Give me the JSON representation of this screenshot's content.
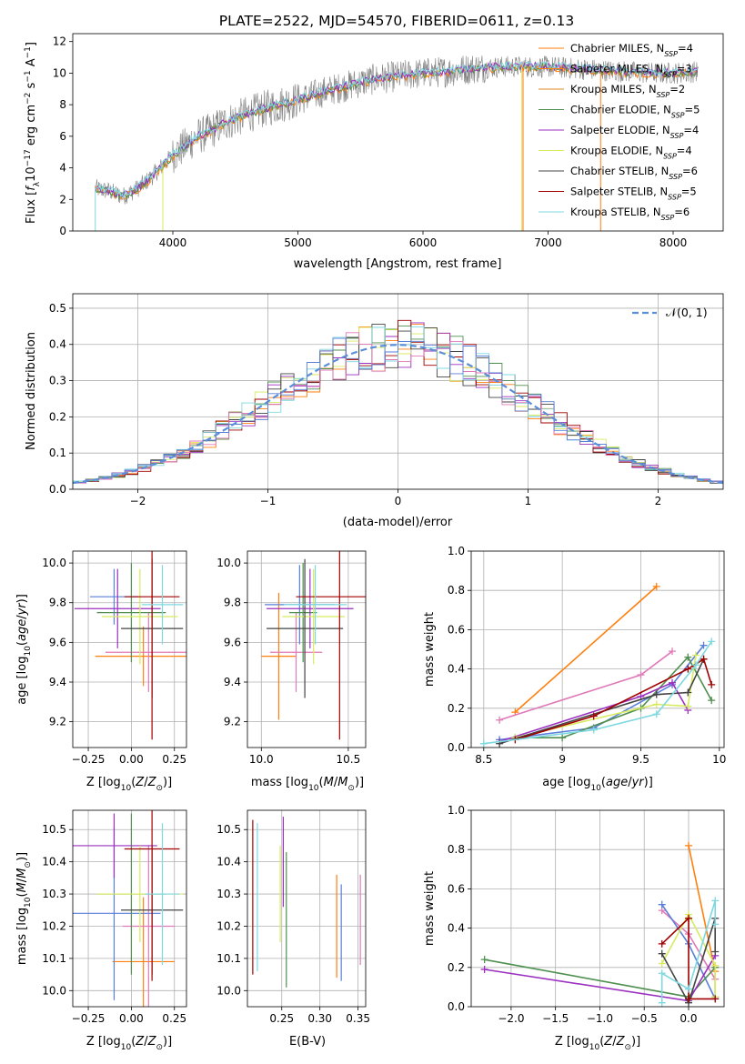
{
  "title": "PLATE=2522, MJD=54570, FIBERID=0611, z=0.13",
  "colors": {
    "Chabrier MILES": "#ff7f0e",
    "Salpeter MILES": "#ff7f0e",
    "Kroupa MILES": "#e08a20",
    "Chabrier ELODIE": "#4f8f4f",
    "Salpeter ELODIE": "#9b30c0",
    "Kroupa ELODIE": "#d8ea60",
    "Chabrier STELIB": "#444444",
    "Salpeter STELIB": "#a00000",
    "Kroupa STELIB": "#7dd8e0",
    "blue": "#5a7fd8",
    "pink": "#e07ab8",
    "gauss": "#5a8fd8",
    "data": "#7f7f7f"
  },
  "chart_data": [
    {
      "id": "spectrum",
      "type": "line",
      "title": "PLATE=2522, MJD=54570, FIBERID=0611, z=0.13",
      "xlabel": "wavelength [Angstrom, rest frame]",
      "ylabel": "Flux [fλ10−17 erg cm−2 s−1 A−1]",
      "xlim": [
        3200,
        8400
      ],
      "ylim": [
        0,
        12.5
      ],
      "xticks": [
        4000,
        5000,
        6000,
        7000,
        8000
      ],
      "yticks": [
        0,
        2,
        4,
        6,
        8,
        10,
        12
      ],
      "grid": false,
      "legend_position": "top-right",
      "legend": [
        {
          "label": "Chabrier MILES, N",
          "sub": "SSP",
          "tail": "=4",
          "color": "#ff7f0e"
        },
        {
          "label": "Salpeter MILES, N",
          "sub": "SSP",
          "tail": "=3",
          "color": "#ff7f0e"
        },
        {
          "label": "Kroupa MILES, N",
          "sub": "SSP",
          "tail": "=2",
          "color": "#e08a20"
        },
        {
          "label": "Chabrier ELODIE, N",
          "sub": "SSP",
          "tail": "=5",
          "color": "#4f8f4f"
        },
        {
          "label": "Salpeter ELODIE, N",
          "sub": "SSP",
          "tail": "=4",
          "color": "#9b30c0"
        },
        {
          "label": "Kroupa ELODIE, N",
          "sub": "SSP",
          "tail": "=4",
          "color": "#d8ea60"
        },
        {
          "label": "Chabrier STELIB, N",
          "sub": "SSP",
          "tail": "=6",
          "color": "#444444"
        },
        {
          "label": "Salpeter STELIB, N",
          "sub": "SSP",
          "tail": "=5",
          "color": "#a00000"
        },
        {
          "label": "Kroupa STELIB, N",
          "sub": "SSP",
          "tail": "=6",
          "color": "#7dd8e0"
        }
      ],
      "continuum": {
        "x": [
          3380,
          3500,
          3600,
          3700,
          3800,
          3900,
          4000,
          4100,
          4200,
          4300,
          4400,
          4500,
          4600,
          4800,
          5000,
          5200,
          5400,
          5600,
          5800,
          6000,
          6200,
          6400,
          6600,
          6800,
          7000,
          7200,
          7400,
          7600,
          7800,
          8000,
          8200
        ],
        "y": [
          2.7,
          2.5,
          2.2,
          2.6,
          3.2,
          4.0,
          4.8,
          5.4,
          6.0,
          6.3,
          6.8,
          7.1,
          7.4,
          7.9,
          8.3,
          8.8,
          9.2,
          9.6,
          9.8,
          10.0,
          10.1,
          10.3,
          10.4,
          10.4,
          10.4,
          10.3,
          10.2,
          10.1,
          10.0,
          10.0,
          10.1
        ]
      },
      "drops": [
        {
          "x": 3920,
          "color": "#d8ea60"
        },
        {
          "x": 6790,
          "color": "#d8ea60"
        },
        {
          "x": 6800,
          "color": "#ff7f0e"
        },
        {
          "x": 7420,
          "color": "#ff7f0e"
        },
        {
          "x": 3380,
          "color": "#7dd8e0"
        }
      ]
    },
    {
      "id": "residuals",
      "type": "bar",
      "xlabel": "(data-model)/error",
      "ylabel": "Normed distribution",
      "xlim": [
        -2.5,
        2.5
      ],
      "ylim": [
        0,
        0.54
      ],
      "xticks": [
        -2,
        -1,
        0,
        1,
        2
      ],
      "yticks": [
        0.0,
        0.1,
        0.2,
        0.3,
        0.4,
        0.5
      ],
      "grid": true,
      "legend_position": "top-right",
      "legend": [
        {
          "label": "𝒩(0, 1)",
          "style": "dashed",
          "color": "#5a8fd8"
        }
      ],
      "bin_width": 0.1
    },
    {
      "id": "age_vs_Z",
      "type": "scatter",
      "xlabel": "Z [log10(Z/Z⊙)]",
      "ylabel": "age  [log10(age/yr)]",
      "xlim": [
        -0.34,
        0.32
      ],
      "ylim": [
        9.07,
        10.06
      ],
      "xticks": [
        -0.25,
        0.0,
        0.25
      ],
      "xticklabels": [
        "−0.25",
        "0.00",
        "0.25"
      ],
      "yticks": [
        9.2,
        9.4,
        9.6,
        9.8,
        10.0
      ],
      "grid": true,
      "points": [
        {
          "x": 0.07,
          "y": 9.53,
          "xerr": 0.28,
          "yerr": 0.15,
          "color": "#ff7f0e"
        },
        {
          "x": 0.1,
          "y": 9.55,
          "xerr": 0.25,
          "yerr": 0.2,
          "color": "#e07ab8"
        },
        {
          "x": -0.1,
          "y": 9.83,
          "xerr": 0.14,
          "yerr": 0.14,
          "color": "#5a7fd8"
        },
        {
          "x": 0.0,
          "y": 9.75,
          "xerr": 0.2,
          "yerr": 0.25,
          "color": "#4f8f4f"
        },
        {
          "x": -0.08,
          "y": 9.77,
          "xerr": 0.25,
          "yerr": 0.2,
          "color": "#9b30c0"
        },
        {
          "x": 0.05,
          "y": 9.73,
          "xerr": 0.22,
          "yerr": 0.24,
          "color": "#d8ea60"
        },
        {
          "x": 0.12,
          "y": 9.67,
          "xerr": 0.18,
          "yerr": 0.35,
          "color": "#444444"
        },
        {
          "x": 0.12,
          "y": 9.83,
          "xerr": 0.16,
          "yerr": 0.72,
          "color": "#a00000"
        },
        {
          "x": 0.18,
          "y": 9.79,
          "xerr": 0.12,
          "yerr": 0.2,
          "color": "#7dd8e0"
        }
      ]
    },
    {
      "id": "age_vs_mass",
      "type": "scatter",
      "xlabel": "mass [log10(M/M⊙)]",
      "xlim": [
        9.92,
        10.6
      ],
      "ylim": [
        9.07,
        10.06
      ],
      "xticks": [
        10.0,
        10.5
      ],
      "xticklabels": [
        "10.0",
        "10.5"
      ],
      "yticks": [
        9.2,
        9.4,
        9.6,
        9.8,
        10.0
      ],
      "grid": true,
      "points": [
        {
          "x": 10.1,
          "y": 9.53,
          "xerr": 0.1,
          "yerr": 0.32,
          "color": "#ff7f0e"
        },
        {
          "x": 10.2,
          "y": 9.55,
          "xerr": 0.15,
          "yerr": 0.2,
          "color": "#e07ab8"
        },
        {
          "x": 10.22,
          "y": 9.79,
          "xerr": 0.2,
          "yerr": 0.2,
          "color": "#5a7fd8"
        },
        {
          "x": 10.24,
          "y": 9.75,
          "xerr": 0.08,
          "yerr": 0.25,
          "color": "#4f8f4f"
        },
        {
          "x": 10.28,
          "y": 9.77,
          "xerr": 0.25,
          "yerr": 0.2,
          "color": "#9b30c0"
        },
        {
          "x": 10.3,
          "y": 9.73,
          "xerr": 0.18,
          "yerr": 0.24,
          "color": "#d8ea60"
        },
        {
          "x": 10.25,
          "y": 9.67,
          "xerr": 0.22,
          "yerr": 0.35,
          "color": "#444444"
        },
        {
          "x": 10.45,
          "y": 9.83,
          "xerr": 0.25,
          "yerr": 0.72,
          "color": "#a00000"
        },
        {
          "x": 10.31,
          "y": 9.79,
          "xerr": 0.18,
          "yerr": 0.2,
          "color": "#7dd8e0"
        }
      ]
    },
    {
      "id": "weight_vs_age",
      "type": "line",
      "xlabel": "age  [log10(age/yr)]",
      "ylabel": "mass weight",
      "xlim": [
        8.42,
        10.03
      ],
      "ylim": [
        0,
        1.0
      ],
      "xticks": [
        8.5,
        9.0,
        9.5,
        10.0
      ],
      "yticks": [
        0.0,
        0.2,
        0.4,
        0.6,
        0.8,
        1.0
      ],
      "grid": true,
      "series": [
        {
          "color": "#ff7f0e",
          "x": [
            8.7,
            9.6
          ],
          "y": [
            0.18,
            0.82
          ]
        },
        {
          "color": "#e07ab8",
          "x": [
            8.6,
            9.5,
            9.7
          ],
          "y": [
            0.14,
            0.37,
            0.49
          ]
        },
        {
          "color": "#5a7fd8",
          "x": [
            8.6,
            9.2,
            9.7,
            9.9
          ],
          "y": [
            0.04,
            0.1,
            0.32,
            0.52
          ]
        },
        {
          "color": "#4f8f4f",
          "x": [
            8.7,
            9.0,
            9.5,
            9.8,
            9.95
          ],
          "y": [
            0.05,
            0.05,
            0.2,
            0.46,
            0.24
          ]
        },
        {
          "color": "#9b30c0",
          "x": [
            8.6,
            9.5,
            9.7,
            9.8
          ],
          "y": [
            0.03,
            0.26,
            0.33,
            0.19
          ]
        },
        {
          "color": "#d8ea60",
          "x": [
            8.7,
            9.6,
            9.8,
            9.85
          ],
          "y": [
            0.05,
            0.22,
            0.21,
            0.47
          ]
        },
        {
          "color": "#444444",
          "x": [
            8.6,
            9.6,
            9.8,
            9.9
          ],
          "y": [
            0.02,
            0.27,
            0.28,
            0.45
          ]
        },
        {
          "color": "#a00000",
          "x": [
            8.7,
            9.2,
            9.8,
            9.9,
            9.95
          ],
          "y": [
            0.04,
            0.16,
            0.4,
            0.45,
            0.32
          ]
        },
        {
          "color": "#7dd8e0",
          "x": [
            8.5,
            9.2,
            9.6,
            9.85,
            9.95
          ],
          "y": [
            0.02,
            0.09,
            0.17,
            0.42,
            0.54
          ]
        }
      ]
    },
    {
      "id": "mass_vs_Z",
      "type": "scatter",
      "xlabel": "Z [log10(Z/Z⊙)]",
      "ylabel": "mass [log10(M/M⊙)]",
      "xlim": [
        -0.34,
        0.32
      ],
      "ylim": [
        9.95,
        10.56
      ],
      "xticks": [
        -0.25,
        0.0,
        0.25
      ],
      "xticklabels": [
        "−0.25",
        "0.00",
        "0.25"
      ],
      "yticks": [
        10.0,
        10.1,
        10.2,
        10.3,
        10.4,
        10.5
      ],
      "grid": true,
      "points": [
        {
          "x": 0.07,
          "y": 10.09,
          "xerr": 0.18,
          "yerr": 0.2,
          "color": "#ff7f0e"
        },
        {
          "x": 0.1,
          "y": 10.2,
          "xerr": 0.15,
          "yerr": 0.25,
          "color": "#e07ab8"
        },
        {
          "x": -0.1,
          "y": 10.24,
          "xerr": 0.27,
          "yerr": 0.27,
          "color": "#5a7fd8"
        },
        {
          "x": 0.0,
          "y": 10.3,
          "xerr": 0.2,
          "yerr": 0.25,
          "color": "#4f8f4f"
        },
        {
          "x": -0.1,
          "y": 10.45,
          "xerr": 0.25,
          "yerr": 0.1,
          "color": "#9b30c0"
        },
        {
          "x": 0.05,
          "y": 10.3,
          "xerr": 0.25,
          "yerr": 0.15,
          "color": "#d8ea60"
        },
        {
          "x": 0.12,
          "y": 10.25,
          "xerr": 0.18,
          "yerr": 0.2,
          "color": "#444444"
        },
        {
          "x": 0.12,
          "y": 10.44,
          "xerr": 0.16,
          "yerr": 0.41,
          "color": "#a00000"
        },
        {
          "x": 0.18,
          "y": 10.3,
          "xerr": 0.1,
          "yerr": 0.22,
          "color": "#7dd8e0"
        }
      ]
    },
    {
      "id": "mass_vs_ebv",
      "type": "scatter",
      "xlabel": "E(B-V)",
      "xlim": [
        0.205,
        0.36
      ],
      "ylim": [
        9.95,
        10.56
      ],
      "xticks": [
        0.25,
        0.3,
        0.35
      ],
      "xticklabels": [
        "0.25",
        "0.30",
        "0.35"
      ],
      "yticks": [
        10.0,
        10.1,
        10.2,
        10.3,
        10.4,
        10.5
      ],
      "grid": true,
      "points": [
        {
          "x": 0.212,
          "y": 10.29,
          "yerr": 0.24,
          "color": "#a00000"
        },
        {
          "x": 0.218,
          "y": 10.29,
          "yerr": 0.23,
          "color": "#7dd8e0"
        },
        {
          "x": 0.248,
          "y": 10.3,
          "yerr": 0.15,
          "color": "#d8ea60"
        },
        {
          "x": 0.252,
          "y": 10.4,
          "yerr": 0.14,
          "color": "#9b30c0"
        },
        {
          "x": 0.256,
          "y": 10.22,
          "yerr": 0.21,
          "color": "#4f8f4f"
        },
        {
          "x": 0.322,
          "y": 10.2,
          "yerr": 0.16,
          "color": "#ff7f0e"
        },
        {
          "x": 0.328,
          "y": 10.18,
          "yerr": 0.15,
          "color": "#5a7fd8"
        },
        {
          "x": 0.353,
          "y": 10.22,
          "yerr": 0.14,
          "color": "#e07ab8"
        }
      ]
    },
    {
      "id": "weight_vs_Z",
      "type": "line",
      "xlabel": "Z [log10(Z/Z⊙)]",
      "ylabel": "mass weight",
      "xlim": [
        -2.45,
        0.4
      ],
      "ylim": [
        0,
        1.0
      ],
      "xticks": [
        -2.0,
        -1.5,
        -1.0,
        -0.5,
        0.0
      ],
      "xticklabels": [
        "−2.0",
        "−1.5",
        "−1.0",
        "−0.5",
        "0.0"
      ],
      "yticks": [
        0.0,
        0.2,
        0.4,
        0.6,
        0.8,
        1.0
      ],
      "grid": true,
      "series": [
        {
          "color": "#ff7f0e",
          "x": [
            0.0,
            0.3
          ],
          "y": [
            0.82,
            0.18
          ]
        },
        {
          "color": "#e07ab8",
          "x": [
            -0.3,
            0.0,
            0.3
          ],
          "y": [
            0.49,
            0.37,
            0.14
          ]
        },
        {
          "color": "#5a7fd8",
          "x": [
            -0.3,
            0.0,
            0.3
          ],
          "y": [
            0.52,
            0.32,
            0.04
          ]
        },
        {
          "color": "#4f8f4f",
          "x": [
            -2.3,
            0.0,
            0.3,
            0.3
          ],
          "y": [
            0.24,
            0.05,
            0.2,
            0.05
          ]
        },
        {
          "color": "#9b30c0",
          "x": [
            -2.3,
            0.0,
            0.3
          ],
          "y": [
            0.19,
            0.03,
            0.26
          ]
        },
        {
          "color": "#d8ea60",
          "x": [
            -0.3,
            0.0,
            0.3,
            0.3
          ],
          "y": [
            0.22,
            0.47,
            0.21,
            0.05
          ]
        },
        {
          "color": "#444444",
          "x": [
            -0.3,
            0.0,
            0.3,
            0.3
          ],
          "y": [
            0.27,
            0.02,
            0.45,
            0.28
          ]
        },
        {
          "color": "#a00000",
          "x": [
            -0.3,
            0.0,
            0.0,
            0.3
          ],
          "y": [
            0.32,
            0.45,
            0.04,
            0.04
          ]
        },
        {
          "color": "#7dd8e0",
          "x": [
            -0.3,
            -0.3,
            0.0,
            0.3,
            0.3
          ],
          "y": [
            0.02,
            0.17,
            0.09,
            0.54,
            0.42
          ]
        }
      ]
    }
  ]
}
